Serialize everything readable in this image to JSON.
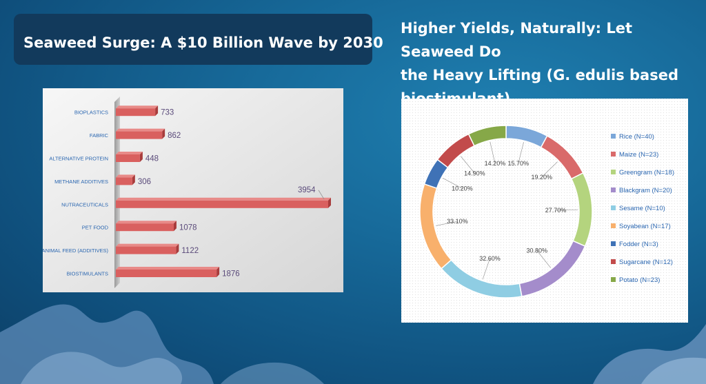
{
  "slide": {
    "left_title": "Seaweed Surge: A $10 Billion Wave by 2030",
    "right_title_lines": [
      "Higher Yields, Naturally: Let Seaweed Do",
      "the Heavy Lifting (G. edulis based",
      "biostimulant)"
    ]
  },
  "chart_data": [
    {
      "type": "bar",
      "orientation": "horizontal",
      "categories": [
        "BIOPLASTICS",
        "FABRIC",
        "ALTERNATIVE PROTEIN",
        "METHANE ADDITIVES",
        "NUTRACEUTICALS",
        "PET FOOD",
        "ANIMAL FEED (ADDITIVES)",
        "BIOSTIMULANTS"
      ],
      "values": [
        733,
        862,
        448,
        306,
        3954,
        1078,
        1122,
        1876
      ],
      "xlim": [
        0,
        3954
      ],
      "colors": {
        "bar": "#d9605f",
        "bar_top": "#e88a88",
        "bar_side": "#a83c3c",
        "label": "#5a4a7a",
        "category": "#2a66b0"
      }
    },
    {
      "type": "pie",
      "style": "donut",
      "labels": [
        "Rice (N=40)",
        "Maize (N=23)",
        "Greengram (N=18)",
        "Blackgram (N=20)",
        "Sesame (N=10)",
        "Soyabean (N=17)",
        "Fodder (N=3)",
        "Sugarcane (N=12)",
        "Potato (N=23)"
      ],
      "values": [
        15.7,
        19.2,
        27.7,
        30.8,
        32.6,
        33.1,
        10.2,
        14.9,
        14.2
      ],
      "value_labels": [
        "15.70%",
        "19.20%",
        "27.70%",
        "30.80%",
        "32.60%",
        "33.10%",
        "10.20%",
        "14.90%",
        "14.20%"
      ],
      "colors": [
        "#7ba7d9",
        "#d96a6a",
        "#b4d47e",
        "#a48ccb",
        "#8fcde3",
        "#f8b06c",
        "#3f72b6",
        "#c24b4b",
        "#86a848"
      ],
      "legend_position": "right"
    }
  ]
}
